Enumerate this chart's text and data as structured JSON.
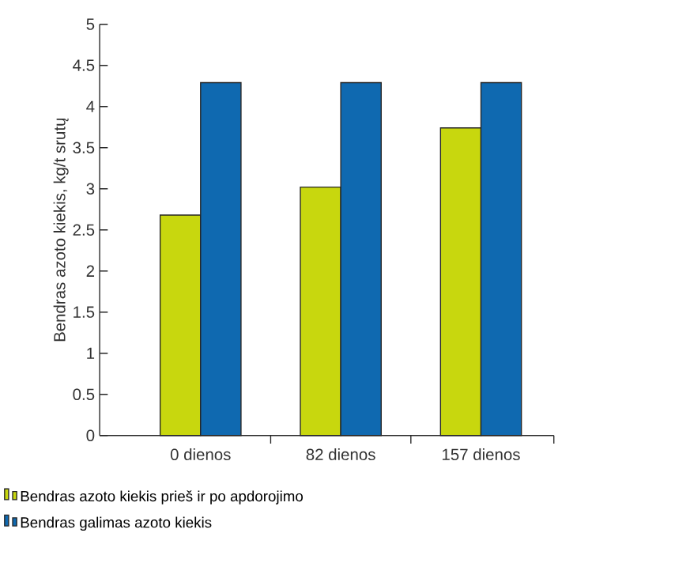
{
  "chart_data": {
    "type": "bar",
    "ylabel": "Bendras azoto kiekis, kg/t srutų",
    "categories": [
      "0 dienos",
      "82 dienos",
      "157 dienos"
    ],
    "series": [
      {
        "name": "Bendras azoto kiekis prieš ir po apdorojimo",
        "color": "#c8d70e",
        "values": [
          2.68,
          3.02,
          3.74
        ]
      },
      {
        "name": "Bendras galimas azoto kiekis",
        "color": "#0f69b0",
        "values": [
          4.29,
          4.29,
          4.29
        ]
      }
    ],
    "ylim": [
      0,
      5
    ],
    "yticks": [
      0,
      0.5,
      1,
      1.5,
      2,
      2.5,
      3,
      3.5,
      4,
      4.5,
      5
    ],
    "legend": "bottom"
  }
}
